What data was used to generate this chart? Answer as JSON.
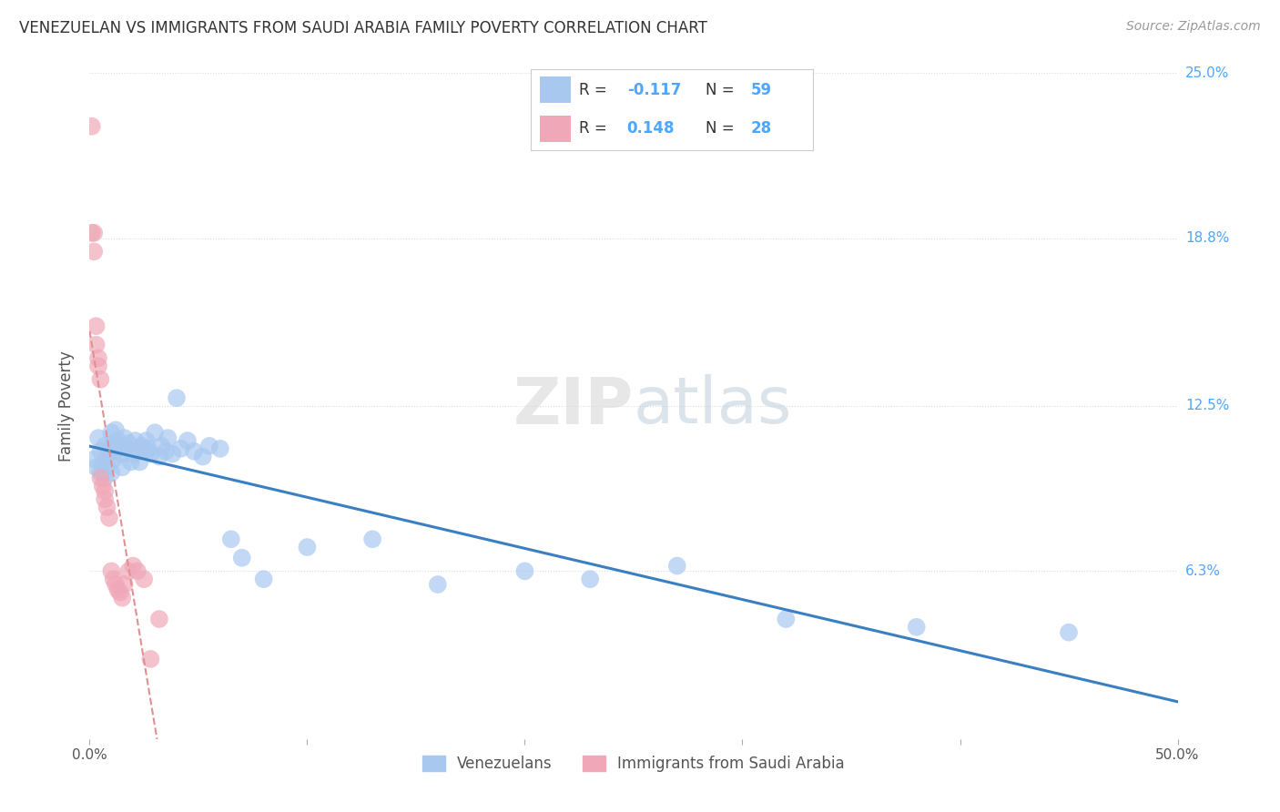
{
  "title": "VENEZUELAN VS IMMIGRANTS FROM SAUDI ARABIA FAMILY POVERTY CORRELATION CHART",
  "source": "Source: ZipAtlas.com",
  "ylabel": "Family Poverty",
  "xlim": [
    0.0,
    0.5
  ],
  "ylim": [
    0.0,
    0.25
  ],
  "yticks": [
    0.0,
    0.063,
    0.125,
    0.188,
    0.25
  ],
  "ytick_labels": [
    "",
    "6.3%",
    "12.5%",
    "18.8%",
    "25.0%"
  ],
  "xticks": [
    0.0,
    0.1,
    0.2,
    0.3,
    0.4,
    0.5
  ],
  "xtick_labels": [
    "0.0%",
    "",
    "",
    "",
    "",
    "50.0%"
  ],
  "venezuelan_color": "#a8c8f0",
  "saudi_color": "#f0a8b8",
  "trend_blue": "#3a7fc1",
  "trend_pink": "#e09090",
  "venezuelan_R": -0.117,
  "venezuelan_N": 59,
  "saudi_R": 0.148,
  "saudi_N": 28,
  "venezuelan_x": [
    0.002,
    0.003,
    0.004,
    0.005,
    0.005,
    0.006,
    0.007,
    0.007,
    0.008,
    0.008,
    0.009,
    0.01,
    0.01,
    0.011,
    0.011,
    0.012,
    0.012,
    0.013,
    0.014,
    0.015,
    0.015,
    0.016,
    0.017,
    0.018,
    0.019,
    0.02,
    0.021,
    0.022,
    0.023,
    0.024,
    0.025,
    0.026,
    0.027,
    0.028,
    0.03,
    0.032,
    0.033,
    0.035,
    0.036,
    0.038,
    0.04,
    0.042,
    0.045,
    0.048,
    0.052,
    0.055,
    0.06,
    0.065,
    0.07,
    0.08,
    0.1,
    0.13,
    0.16,
    0.2,
    0.23,
    0.27,
    0.32,
    0.38,
    0.45
  ],
  "venezuelan_y": [
    0.105,
    0.102,
    0.113,
    0.108,
    0.1,
    0.103,
    0.11,
    0.098,
    0.105,
    0.102,
    0.108,
    0.115,
    0.1,
    0.111,
    0.105,
    0.116,
    0.108,
    0.112,
    0.11,
    0.107,
    0.102,
    0.113,
    0.109,
    0.111,
    0.104,
    0.107,
    0.112,
    0.108,
    0.104,
    0.11,
    0.108,
    0.112,
    0.109,
    0.107,
    0.115,
    0.106,
    0.11,
    0.108,
    0.113,
    0.107,
    0.128,
    0.109,
    0.112,
    0.108,
    0.106,
    0.11,
    0.109,
    0.075,
    0.068,
    0.06,
    0.072,
    0.075,
    0.058,
    0.063,
    0.06,
    0.065,
    0.045,
    0.042,
    0.04
  ],
  "saudi_x": [
    0.001,
    0.001,
    0.002,
    0.002,
    0.003,
    0.003,
    0.004,
    0.004,
    0.005,
    0.005,
    0.006,
    0.007,
    0.007,
    0.008,
    0.009,
    0.01,
    0.011,
    0.012,
    0.013,
    0.014,
    0.015,
    0.016,
    0.018,
    0.02,
    0.022,
    0.025,
    0.028,
    0.032
  ],
  "saudi_y": [
    0.23,
    0.19,
    0.19,
    0.183,
    0.155,
    0.148,
    0.143,
    0.14,
    0.135,
    0.098,
    0.095,
    0.093,
    0.09,
    0.087,
    0.083,
    0.063,
    0.06,
    0.058,
    0.056,
    0.055,
    0.053,
    0.058,
    0.063,
    0.065,
    0.063,
    0.06,
    0.03,
    0.045
  ],
  "background_color": "#ffffff",
  "grid_color": "#dddddd",
  "title_color": "#333333",
  "axis_label_color": "#555555",
  "tick_label_color_right": "#4da6ff",
  "watermark_text": "ZIPatlas"
}
